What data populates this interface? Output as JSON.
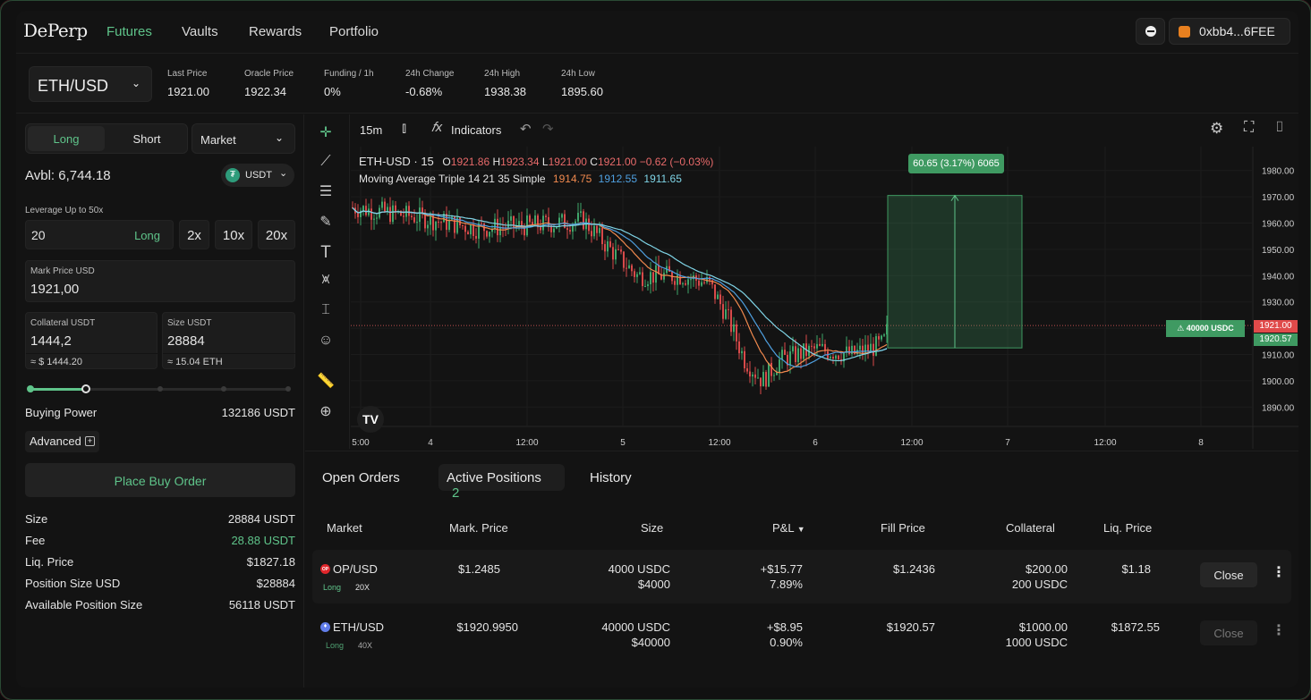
{
  "nav": {
    "logo": "DePerp",
    "links": [
      "Futures",
      "Vaults",
      "Rewards",
      "Portfolio"
    ],
    "wallet": "0xbb4...6FEE"
  },
  "market": {
    "pair": "ETH/USD",
    "stats": [
      {
        "label": "Last Price",
        "value": "1921.00"
      },
      {
        "label": "Oracle Price",
        "value": "1922.34"
      },
      {
        "label": "Funding / 1h",
        "value": "0%"
      },
      {
        "label": "24h Change",
        "value": "-0.68%"
      },
      {
        "label": "24h High",
        "value": "1938.38"
      },
      {
        "label": "24h Low",
        "value": "1895.60"
      }
    ]
  },
  "order": {
    "long_label": "Long",
    "short_label": "Short",
    "type": "Market",
    "available": "Avbl: 6,744.18",
    "asset": "USDT",
    "leverage_label": "Leverage Up to 50x",
    "leverage_value": "20",
    "leverage_side": "Long",
    "presets": [
      "2x",
      "10x",
      "20x"
    ],
    "mark_label": "Mark Price USD",
    "mark_value": "1921,00",
    "collateral_label": "Collateral USDT",
    "collateral_value": "1444,2",
    "collateral_hint": "≈ $ 1444.20",
    "size_label": "Size USDT",
    "size_value": "28884",
    "size_hint": "≈ 15.04 ETH",
    "buying_power_label": "Buying Power",
    "buying_power_value": "132186 USDT",
    "advanced_label": "Advanced",
    "place_label": "Place Buy Order",
    "summary": [
      {
        "label": "Size",
        "value": "28884 USDT"
      },
      {
        "label": "Fee",
        "value": "28.88 USDT"
      },
      {
        "label": "Liq. Price",
        "value": "$1827.18"
      },
      {
        "label": "Position Size USD",
        "value": "$28884"
      },
      {
        "label": "Available Position Size",
        "value": "56118 USDT"
      }
    ]
  },
  "chart": {
    "interval": "15m",
    "indicators_label": "Indicators",
    "symbol": "ETH-USD · 15",
    "ohlc": {
      "o": "1921.86",
      "h": "1923.34",
      "l": "1921.00",
      "c": "1921.00",
      "chg": "−0.62 (−0.03%)"
    },
    "ma_label": "Moving Average Triple 14 21 35 Simple",
    "ma_values": [
      "1914.75",
      "1912.55",
      "1911.65"
    ],
    "measure_label": "60.65 (3.17%) 6065",
    "alert_label": "⚠ 40000 USDC",
    "price_tag_last": "1921.00",
    "price_tag_ma": "1920.57",
    "y_ticks": [
      "1980.00",
      "1970.00",
      "1960.00",
      "1950.00",
      "1940.00",
      "1930.00",
      "1920.00",
      "1910.00",
      "1900.00",
      "1890.00"
    ],
    "x_ticks": [
      "5:00",
      "4",
      "12:00",
      "5",
      "12:00",
      "6",
      "12:00",
      "7",
      "12:00",
      "8"
    ]
  },
  "positions": {
    "tabs": [
      "Open Orders",
      "Active Positions",
      "History"
    ],
    "active_count": "2",
    "headers": [
      "Market",
      "Mark. Price",
      "Size",
      "P&L",
      "Fill Price",
      "Collateral",
      "Liq. Price"
    ],
    "sort_icon": "▼",
    "close_label": "Close",
    "rows": [
      {
        "market": "OP/USD",
        "side": "Long",
        "lev": "20X",
        "mark": "$1.2485",
        "size1": "4000 USDC",
        "size2": "$4000",
        "pnl1": "+$15.77",
        "pnl2": "7.89%",
        "fill": "$1.2436",
        "coll1": "$200.00",
        "coll2": "200 USDC",
        "liq": "$1.18"
      },
      {
        "market": "ETH/USD",
        "side": "Long",
        "lev": "40X",
        "mark": "$1920.9950",
        "size1": "40000 USDC",
        "size2": "$40000",
        "pnl1": "+$8.95",
        "pnl2": "0.90%",
        "fill": "$1920.57",
        "coll1": "$1000.00",
        "coll2": "1000 USDC",
        "liq": "$1872.55"
      }
    ]
  },
  "colors": {
    "accent": "#5fc48a",
    "negative": "#e86a6a",
    "background": "#131313"
  }
}
